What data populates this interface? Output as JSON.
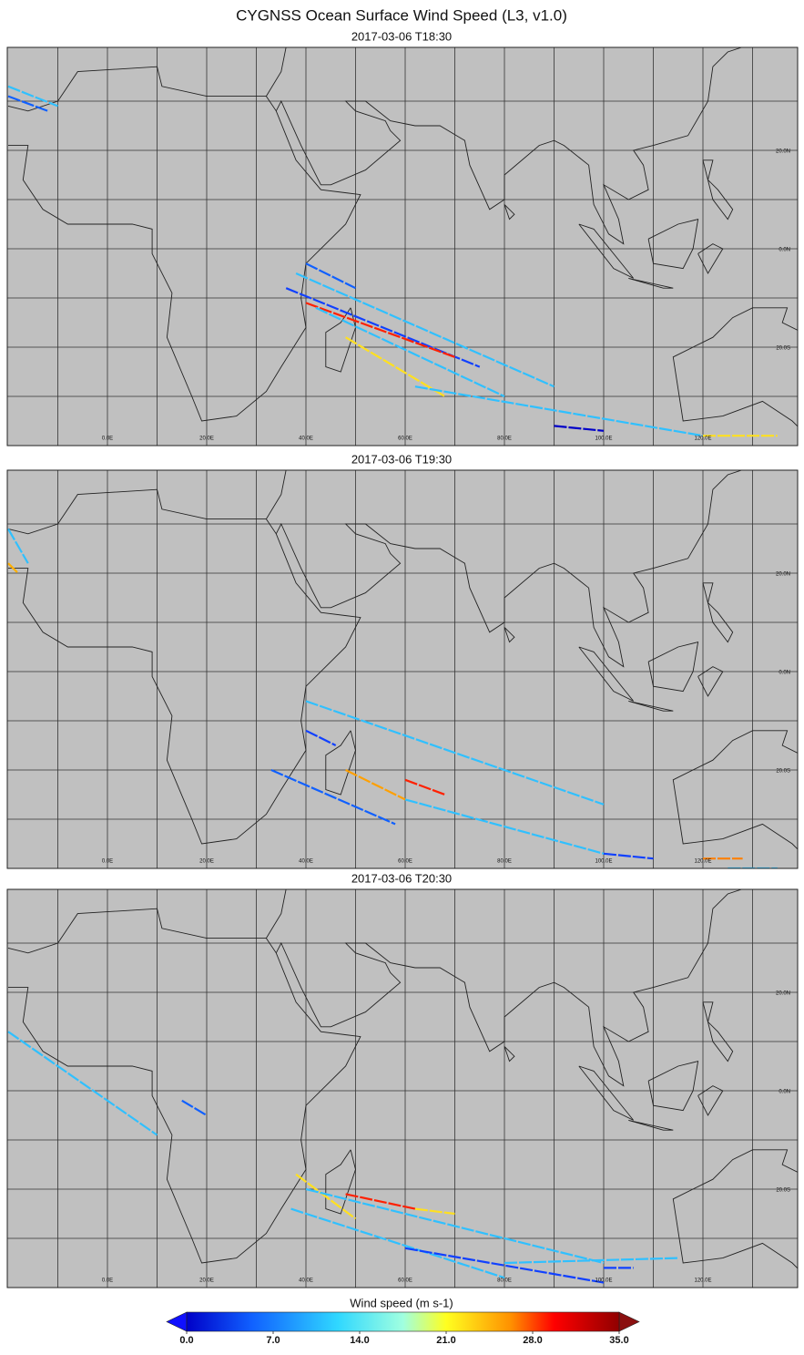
{
  "title": "CYGNSS Ocean Surface Wind Speed (L3, v1.0)",
  "panels": [
    {
      "time": "2017-03-06 T18:30"
    },
    {
      "time": "2017-03-06 T19:30"
    },
    {
      "time": "2017-03-06 T20:30"
    }
  ],
  "lon_labels": [
    {
      "lon": 0,
      "label": "0.0E"
    },
    {
      "lon": 20,
      "label": "20.0E"
    },
    {
      "lon": 40,
      "label": "40.0E"
    },
    {
      "lon": 60,
      "label": "60.0E"
    },
    {
      "lon": 80,
      "label": "80.0E"
    },
    {
      "lon": 100,
      "label": "100.0E"
    },
    {
      "lon": 120,
      "label": "120.0E"
    }
  ],
  "lat_labels": [
    {
      "lat": 20,
      "label": "20.0N"
    },
    {
      "lat": 0,
      "label": "0.0N"
    },
    {
      "lat": -20,
      "label": "20.0S"
    }
  ],
  "colorbar": {
    "label": "Wind speed (m s-1)",
    "lim": [
      0,
      35
    ],
    "ticks": [
      {
        "value": 0,
        "label": "0.0"
      },
      {
        "value": 7,
        "label": "7.0"
      },
      {
        "value": 14,
        "label": "14.0"
      },
      {
        "value": 21,
        "label": "21.0"
      },
      {
        "value": 28,
        "label": "28.0"
      },
      {
        "value": 35,
        "label": "35.0"
      }
    ]
  }
}
